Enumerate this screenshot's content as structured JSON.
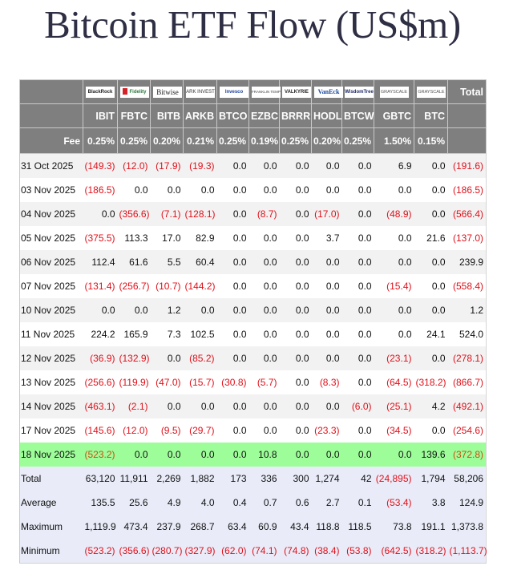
{
  "title": "Bitcoin ETF Flow (US$m)",
  "columns": [
    {
      "issuer_logo": "BlackRock",
      "logo_class": "blackrock",
      "ticker": "IBIT",
      "fee": "0.25%"
    },
    {
      "issuer_logo": "Fidelity",
      "logo_class": "fidelity",
      "ticker": "FBTC",
      "fee": "0.25%"
    },
    {
      "issuer_logo": "Bitwise",
      "logo_class": "bitwise",
      "ticker": "BITB",
      "fee": "0.20%"
    },
    {
      "issuer_logo": "ARK INVEST",
      "logo_class": "ark",
      "ticker": "ARKB",
      "fee": "0.21%"
    },
    {
      "issuer_logo": "Invesco",
      "logo_class": "invesco",
      "ticker": "BTCO",
      "fee": "0.25%"
    },
    {
      "issuer_logo": "FRANKLIN TEMPLETON",
      "logo_class": "franklin",
      "ticker": "EZBC",
      "fee": "0.19%"
    },
    {
      "issuer_logo": "VALKYRIE",
      "logo_class": "valkyrie",
      "ticker": "BRRR",
      "fee": "0.25%"
    },
    {
      "issuer_logo": "VanEck",
      "logo_class": "vaneck",
      "ticker": "HODL",
      "fee": "0.20%"
    },
    {
      "issuer_logo": "WisdomTree",
      "logo_class": "wisdom",
      "ticker": "BTCW",
      "fee": "0.25%"
    },
    {
      "issuer_logo": "GRAYSCALE",
      "logo_class": "grayscale",
      "ticker": "GBTC",
      "fee": "1.50%"
    },
    {
      "issuer_logo": "GRAYSCALE",
      "logo_class": "grayscale",
      "ticker": "BTC",
      "fee": "0.15%"
    }
  ],
  "header": {
    "total_label": "Total",
    "fee_label": "Fee"
  },
  "rows": [
    {
      "date": "31 Oct 2025",
      "values": [
        "(149.3)",
        "(12.0)",
        "(17.9)",
        "(19.3)",
        "0.0",
        "0.0",
        "0.0",
        "0.0",
        "0.0",
        "6.9",
        "0.0"
      ],
      "total": "(191.6)"
    },
    {
      "date": "03 Nov 2025",
      "values": [
        "(186.5)",
        "0.0",
        "0.0",
        "0.0",
        "0.0",
        "0.0",
        "0.0",
        "0.0",
        "0.0",
        "0.0",
        "0.0"
      ],
      "total": "(186.5)"
    },
    {
      "date": "04 Nov 2025",
      "values": [
        "0.0",
        "(356.6)",
        "(7.1)",
        "(128.1)",
        "0.0",
        "(8.7)",
        "0.0",
        "(17.0)",
        "0.0",
        "(48.9)",
        "0.0"
      ],
      "total": "(566.4)"
    },
    {
      "date": "05 Nov 2025",
      "values": [
        "(375.5)",
        "113.3",
        "17.0",
        "82.9",
        "0.0",
        "0.0",
        "0.0",
        "3.7",
        "0.0",
        "0.0",
        "21.6"
      ],
      "total": "(137.0)"
    },
    {
      "date": "06 Nov 2025",
      "values": [
        "112.4",
        "61.6",
        "5.5",
        "60.4",
        "0.0",
        "0.0",
        "0.0",
        "0.0",
        "0.0",
        "0.0",
        "0.0"
      ],
      "total": "239.9"
    },
    {
      "date": "07 Nov 2025",
      "values": [
        "(131.4)",
        "(256.7)",
        "(10.7)",
        "(144.2)",
        "0.0",
        "0.0",
        "0.0",
        "0.0",
        "0.0",
        "(15.4)",
        "0.0"
      ],
      "total": "(558.4)"
    },
    {
      "date": "10 Nov 2025",
      "values": [
        "0.0",
        "0.0",
        "1.2",
        "0.0",
        "0.0",
        "0.0",
        "0.0",
        "0.0",
        "0.0",
        "0.0",
        "0.0"
      ],
      "total": "1.2"
    },
    {
      "date": "11 Nov 2025",
      "values": [
        "224.2",
        "165.9",
        "7.3",
        "102.5",
        "0.0",
        "0.0",
        "0.0",
        "0.0",
        "0.0",
        "0.0",
        "24.1"
      ],
      "total": "524.0"
    },
    {
      "date": "12 Nov 2025",
      "values": [
        "(36.9)",
        "(132.9)",
        "0.0",
        "(85.2)",
        "0.0",
        "0.0",
        "0.0",
        "0.0",
        "0.0",
        "(23.1)",
        "0.0"
      ],
      "total": "(278.1)"
    },
    {
      "date": "13 Nov 2025",
      "values": [
        "(256.6)",
        "(119.9)",
        "(47.0)",
        "(15.7)",
        "(30.8)",
        "(5.7)",
        "0.0",
        "(8.3)",
        "0.0",
        "(64.5)",
        "(318.2)"
      ],
      "total": "(866.7)"
    },
    {
      "date": "14 Nov 2025",
      "values": [
        "(463.1)",
        "(2.1)",
        "0.0",
        "0.0",
        "0.0",
        "0.0",
        "0.0",
        "0.0",
        "(6.0)",
        "(25.1)",
        "4.2"
      ],
      "total": "(492.1)"
    },
    {
      "date": "17 Nov 2025",
      "values": [
        "(145.6)",
        "(12.0)",
        "(9.5)",
        "(29.7)",
        "0.0",
        "0.0",
        "0.0",
        "(23.3)",
        "0.0",
        "(34.5)",
        "0.0"
      ],
      "total": "(254.6)"
    },
    {
      "date": "18 Nov 2025",
      "values": [
        "(523.2)",
        "0.0",
        "0.0",
        "0.0",
        "0.0",
        "10.8",
        "0.0",
        "0.0",
        "0.0",
        "0.0",
        "139.6"
      ],
      "total": "(372.8)",
      "highlight": true
    }
  ],
  "summary": [
    {
      "label": "Total",
      "values": [
        "63,120",
        "11,911",
        "2,269",
        "1,882",
        "173",
        "336",
        "300",
        "1,274",
        "42",
        "(24,895)",
        "1,794"
      ],
      "total": "58,206"
    },
    {
      "label": "Average",
      "values": [
        "135.5",
        "25.6",
        "4.9",
        "4.0",
        "0.4",
        "0.7",
        "0.6",
        "2.7",
        "0.1",
        "(53.4)",
        "3.8"
      ],
      "total": "124.9"
    },
    {
      "label": "Maximum",
      "values": [
        "1,119.9",
        "473.4",
        "237.9",
        "268.7",
        "63.4",
        "60.9",
        "43.4",
        "118.8",
        "118.5",
        "73.8",
        "191.1"
      ],
      "total": "1,373.8"
    },
    {
      "label": "Minimum",
      "values": [
        "(523.2)",
        "(356.6)",
        "(280.7)",
        "(327.9)",
        "(62.0)",
        "(74.1)",
        "(74.8)",
        "(38.4)",
        "(53.8)",
        "(642.5)",
        "(318.2)"
      ],
      "total": "(1,113.7)"
    }
  ],
  "colors": {
    "header_bg": "#7f7f7f",
    "negative": "#e0101a",
    "highlight_row": "#9dfd99",
    "summary_bg": "#e9ecf8",
    "stripe": "#f2f2f2"
  }
}
